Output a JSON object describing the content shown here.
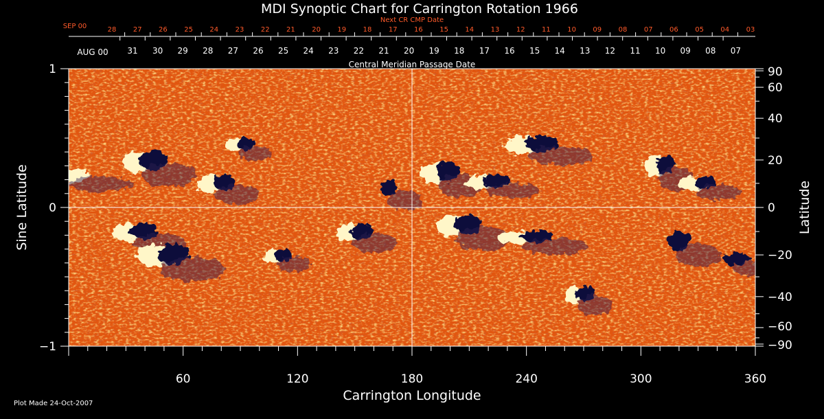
{
  "chart_data": {
    "type": "heatmap",
    "title": "MDI Synoptic Chart for Carrington Rotation 1966",
    "xlabel": "Carrington Longitude",
    "ylabel_left": "Sine Latitude",
    "ylabel_right": "Latitude",
    "xlim": [
      0,
      360
    ],
    "ylim": [
      -1,
      1
    ],
    "x_ticks": [
      60,
      120,
      180,
      240,
      300,
      360
    ],
    "y_ticks_left": [
      {
        "value": 1,
        "label": "1"
      },
      {
        "value": 0,
        "label": "0"
      },
      {
        "value": -1,
        "label": "−1"
      }
    ],
    "y_ticks_right": [
      90,
      60,
      40,
      20,
      0,
      -20,
      -40,
      -60,
      -90
    ],
    "y_ticks_right_labels": [
      "90",
      "60",
      "40",
      "20",
      "0",
      "−20",
      "−40",
      "−60",
      "−90"
    ],
    "top_axis": {
      "label": "Next CR CMP Date",
      "month_label": "SEP 00",
      "dates": [
        "28",
        "27",
        "26",
        "25",
        "24",
        "23",
        "22",
        "21",
        "20",
        "19",
        "18",
        "17",
        "16",
        "15",
        "14",
        "13",
        "12",
        "11",
        "10",
        "09",
        "08",
        "07",
        "06",
        "05",
        "04",
        "03"
      ]
    },
    "bottom_date_axis": {
      "label": "Central Meridian Passage Date",
      "month_label": "AUG 00",
      "dates": [
        "31",
        "30",
        "29",
        "28",
        "27",
        "26",
        "25",
        "24",
        "23",
        "22",
        "21",
        "20",
        "19",
        "18",
        "17",
        "16",
        "15",
        "14",
        "13",
        "12",
        "11",
        "10",
        "09",
        "08",
        "07"
      ]
    },
    "colors": {
      "background_field": "#ea5a0d",
      "positive_polarity": "#fff6c8",
      "negative_polarity": "#10103a",
      "top_axis_text": "#ff5a2a"
    },
    "active_regions": [
      {
        "lon": 90,
        "sinlat": 0.45,
        "polarity": "mixed"
      },
      {
        "lon": 78,
        "sinlat": 0.17,
        "polarity": "mixed"
      },
      {
        "lon": 40,
        "sinlat": 0.33,
        "polarity": "mixed"
      },
      {
        "lon": 2,
        "sinlat": 0.23,
        "polarity": "positive"
      },
      {
        "lon": 168,
        "sinlat": 0.13,
        "polarity": "negative"
      },
      {
        "lon": 195,
        "sinlat": 0.25,
        "polarity": "mixed"
      },
      {
        "lon": 220,
        "sinlat": 0.18,
        "polarity": "mixed"
      },
      {
        "lon": 243,
        "sinlat": 0.45,
        "polarity": "mixed"
      },
      {
        "lon": 310,
        "sinlat": 0.3,
        "polarity": "mixed"
      },
      {
        "lon": 330,
        "sinlat": 0.17,
        "polarity": "mixed"
      },
      {
        "lon": 35,
        "sinlat": -0.18,
        "polarity": "mixed"
      },
      {
        "lon": 50,
        "sinlat": -0.35,
        "polarity": "mixed"
      },
      {
        "lon": 110,
        "sinlat": -0.35,
        "polarity": "mixed"
      },
      {
        "lon": 150,
        "sinlat": -0.18,
        "polarity": "mixed"
      },
      {
        "lon": 205,
        "sinlat": -0.13,
        "polarity": "mixed"
      },
      {
        "lon": 240,
        "sinlat": -0.22,
        "polarity": "mixed"
      },
      {
        "lon": 268,
        "sinlat": -0.63,
        "polarity": "mixed"
      },
      {
        "lon": 320,
        "sinlat": -0.25,
        "polarity": "negative"
      },
      {
        "lon": 350,
        "sinlat": -0.38,
        "polarity": "negative"
      }
    ]
  },
  "footer": {
    "plot_made": "Plot Made 24-Oct-2007"
  }
}
